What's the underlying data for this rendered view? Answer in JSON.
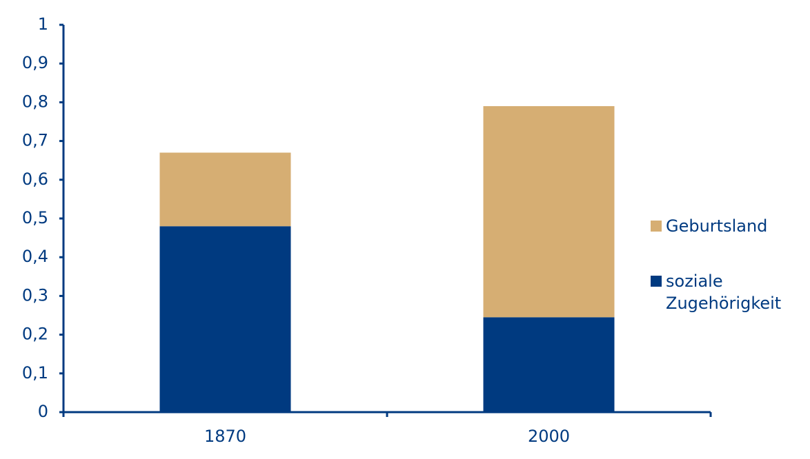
{
  "chart_data": {
    "type": "stacked_bar",
    "categories": [
      "1870",
      "2000"
    ],
    "series": [
      {
        "name": "soziale Zugehörigkeit",
        "color": "#003a80",
        "values": [
          0.48,
          0.245
        ]
      },
      {
        "name": "Geburtsland",
        "color": "#d6ae73",
        "values": [
          0.19,
          0.545
        ]
      }
    ],
    "ylim": [
      0,
      1
    ],
    "yticks": [
      0,
      {
        "value": 0.1,
        "label": "0,1"
      },
      {
        "value": 0.2,
        "label": "0,2"
      },
      {
        "value": 0.3,
        "label": "0,3"
      },
      {
        "value": 0.4,
        "label": "0,4"
      },
      {
        "value": 0.5,
        "label": "0,5"
      },
      {
        "value": 0.6,
        "label": "0,6"
      },
      {
        "value": 0.7,
        "label": "0,7"
      },
      {
        "value": 0.8,
        "label": "0,8"
      },
      {
        "value": 0.9,
        "label": "0,9"
      },
      1
    ],
    "grid": false,
    "legend": "right"
  }
}
